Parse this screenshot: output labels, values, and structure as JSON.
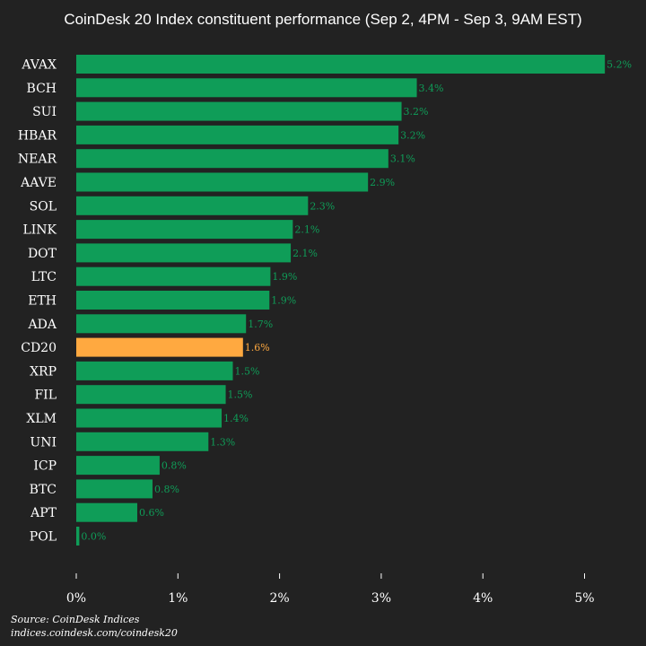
{
  "chart_data": {
    "type": "bar",
    "orientation": "horizontal",
    "title": "CoinDesk 20 Index constituent performance (Sep 2, 4PM - Sep 3, 9AM EST)",
    "xlabel": "",
    "ylabel": "",
    "xlim": [
      0,
      5.2
    ],
    "x_ticks": [
      "0%",
      "1%",
      "2%",
      "3%",
      "4%",
      "5%"
    ],
    "x_tick_values": [
      0,
      1,
      2,
      3,
      4,
      5
    ],
    "categories": [
      "AVAX",
      "BCH",
      "SUI",
      "HBAR",
      "NEAR",
      "AAVE",
      "SOL",
      "LINK",
      "DOT",
      "LTC",
      "ETH",
      "ADA",
      "CD20",
      "XRP",
      "FIL",
      "XLM",
      "UNI",
      "ICP",
      "BTC",
      "APT",
      "POL"
    ],
    "values": [
      5.2,
      3.35,
      3.2,
      3.17,
      3.07,
      2.87,
      2.28,
      2.13,
      2.11,
      1.91,
      1.9,
      1.67,
      1.64,
      1.54,
      1.47,
      1.43,
      1.3,
      0.82,
      0.75,
      0.6,
      0.03
    ],
    "data_labels": [
      "5.2%",
      "3.4%",
      "3.2%",
      "3.2%",
      "3.1%",
      "2.9%",
      "2.3%",
      "2.1%",
      "2.1%",
      "1.9%",
      "1.9%",
      "1.7%",
      "1.6%",
      "1.5%",
      "1.5%",
      "1.4%",
      "1.3%",
      "0.8%",
      "0.8%",
      "0.6%",
      "0.0%"
    ],
    "highlight_category": "CD20",
    "grid": false,
    "legend": "none",
    "colors": {
      "bar": "#0f9d58",
      "highlight": "#ffa940",
      "background": "#222222",
      "text": "#ffffff"
    }
  },
  "source": {
    "line1": "Source: CoinDesk Indices",
    "line2": "indices.coindesk.com/coindesk20"
  }
}
